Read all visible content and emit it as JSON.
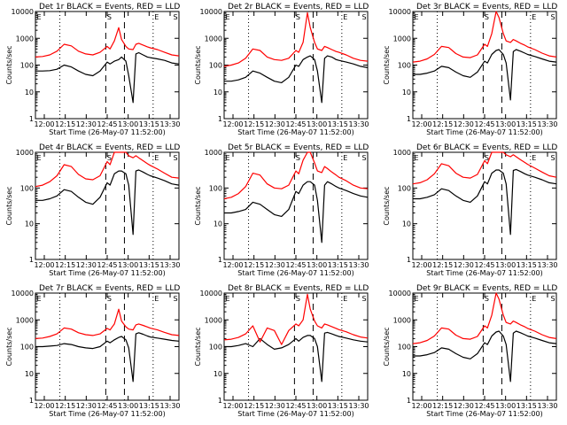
{
  "colors": {
    "events": "#000000",
    "lld": "#ff0000",
    "background": "#ffffff"
  },
  "chart_data": [
    {
      "type": "line",
      "title": "Det 1r BLACK = Events, RED = LLD",
      "xlabel": "Start Time (26-May-07 11:52:00)",
      "ylabel": "Counts/sec",
      "x_ticks": [
        "12:00",
        "12:15",
        "12:30",
        "12:45",
        "13:00",
        "13:15",
        "13:30"
      ],
      "y_ticks": [
        "1",
        "10",
        "100",
        "1000",
        "10000"
      ],
      "yscale": "log",
      "ylim": [
        1,
        10000
      ],
      "markers": {
        "S": "S",
        "E": "E"
      },
      "x": [
        0,
        5,
        10,
        15,
        20,
        25,
        30,
        35,
        40,
        45,
        50,
        52,
        55,
        58,
        60,
        63,
        65,
        68,
        70,
        72,
        75,
        78,
        80,
        85,
        90,
        95,
        100
      ],
      "series": [
        {
          "name": "Events",
          "values": [
            60,
            60,
            62,
            70,
            100,
            85,
            60,
            45,
            40,
            60,
            130,
            110,
            140,
            160,
            200,
            140,
            40,
            4,
            260,
            290,
            240,
            200,
            190,
            170,
            150,
            120,
            110
          ]
        },
        {
          "name": "LLD",
          "values": [
            200,
            210,
            240,
            330,
            600,
            520,
            330,
            260,
            240,
            300,
            500,
            400,
            800,
            2500,
            900,
            500,
            400,
            380,
            600,
            650,
            560,
            480,
            440,
            380,
            300,
            240,
            220
          ]
        }
      ]
    },
    {
      "type": "line",
      "title": "Det 2r BLACK = Events, RED = LLD",
      "xlabel": "Start Time (26-May-07 11:52:00)",
      "ylabel": "Counts/sec",
      "x_ticks": [
        "12:00",
        "12:15",
        "12:30",
        "12:45",
        "13:00",
        "13:15",
        "13:30"
      ],
      "y_ticks": [
        "1",
        "10",
        "100",
        "1000",
        "10000"
      ],
      "yscale": "log",
      "ylim": [
        1,
        10000
      ],
      "markers": {
        "S": "S",
        "E": "E"
      },
      "x": [
        0,
        5,
        10,
        15,
        20,
        25,
        30,
        35,
        40,
        45,
        50,
        52,
        55,
        58,
        60,
        63,
        65,
        68,
        70,
        72,
        75,
        78,
        80,
        85,
        90,
        95,
        100
      ],
      "series": [
        {
          "name": "Events",
          "values": [
            25,
            25,
            28,
            35,
            60,
            50,
            35,
            25,
            22,
            35,
            100,
            90,
            160,
            200,
            220,
            160,
            60,
            4,
            180,
            220,
            200,
            160,
            150,
            130,
            110,
            90,
            80
          ]
        },
        {
          "name": "LLD",
          "values": [
            90,
            100,
            120,
            180,
            400,
            350,
            200,
            160,
            150,
            180,
            350,
            300,
            700,
            9000,
            2500,
            700,
            400,
            350,
            500,
            450,
            380,
            320,
            300,
            240,
            180,
            150,
            140
          ]
        }
      ]
    },
    {
      "type": "line",
      "title": "Det 3r BLACK = Events, RED = LLD",
      "xlabel": "Start Time (26-May-07 11:52:00)",
      "ylabel": "Counts/sec",
      "x_ticks": [
        "12:00",
        "12:15",
        "12:30",
        "12:45",
        "13:00",
        "13:15",
        "13:30"
      ],
      "y_ticks": [
        "1",
        "10",
        "100",
        "1000",
        "10000"
      ],
      "yscale": "log",
      "ylim": [
        1,
        10000
      ],
      "markers": {
        "S": "S",
        "E": "E"
      },
      "x": [
        0,
        5,
        10,
        15,
        20,
        25,
        30,
        35,
        40,
        45,
        50,
        52,
        55,
        58,
        60,
        63,
        65,
        68,
        70,
        72,
        75,
        78,
        80,
        85,
        90,
        95,
        100
      ],
      "series": [
        {
          "name": "Events",
          "values": [
            45,
            45,
            50,
            60,
            90,
            80,
            55,
            40,
            35,
            55,
            140,
            120,
            250,
            350,
            380,
            250,
            120,
            5,
            320,
            380,
            330,
            280,
            250,
            210,
            170,
            140,
            130
          ]
        },
        {
          "name": "LLD",
          "values": [
            130,
            140,
            170,
            250,
            500,
            450,
            270,
            200,
            190,
            240,
            600,
            500,
            1500,
            10000,
            6000,
            1500,
            800,
            700,
            900,
            800,
            650,
            550,
            480,
            380,
            280,
            220,
            200
          ]
        }
      ]
    },
    {
      "type": "line",
      "title": "Det 4r BLACK = Events, RED = LLD",
      "xlabel": "Start Time (26-May-07 11:52:00)",
      "ylabel": "Counts/sec",
      "x_ticks": [
        "12:00",
        "12:15",
        "12:30",
        "12:45",
        "13:00",
        "13:15",
        "13:30"
      ],
      "y_ticks": [
        "1",
        "10",
        "100",
        "1000"
      ],
      "yscale": "log",
      "ylim": [
        1,
        1000
      ],
      "markers": {
        "S": "S",
        "E": "E"
      },
      "x": [
        0,
        5,
        10,
        15,
        20,
        25,
        30,
        35,
        40,
        45,
        50,
        52,
        55,
        58,
        60,
        63,
        65,
        68,
        70,
        72,
        75,
        78,
        80,
        85,
        90,
        95,
        100
      ],
      "series": [
        {
          "name": "Events",
          "values": [
            45,
            45,
            50,
            60,
            90,
            80,
            55,
            40,
            35,
            55,
            140,
            120,
            250,
            300,
            300,
            250,
            120,
            5,
            300,
            320,
            280,
            240,
            220,
            190,
            160,
            130,
            120
          ]
        },
        {
          "name": "LLD",
          "values": [
            110,
            120,
            150,
            220,
            450,
            400,
            240,
            180,
            170,
            220,
            550,
            450,
            1000,
            1000,
            1000,
            1000,
            800,
            700,
            800,
            700,
            580,
            480,
            430,
            340,
            260,
            200,
            190
          ]
        }
      ]
    },
    {
      "type": "line",
      "title": "Det 5r BLACK = Events, RED = LLD",
      "xlabel": "Start Time (26-May-07 11:52:00)",
      "ylabel": "Counts/sec",
      "x_ticks": [
        "12:00",
        "12:15",
        "12:30",
        "12:45",
        "13:00",
        "13:15",
        "13:30"
      ],
      "y_ticks": [
        "1",
        "10",
        "100",
        "1000"
      ],
      "yscale": "log",
      "ylim": [
        1,
        1000
      ],
      "markers": {
        "S": "S",
        "E": "E"
      },
      "x": [
        0,
        5,
        10,
        15,
        20,
        25,
        30,
        35,
        40,
        45,
        50,
        52,
        55,
        58,
        60,
        63,
        65,
        68,
        70,
        72,
        75,
        78,
        80,
        85,
        90,
        95,
        100
      ],
      "series": [
        {
          "name": "Events",
          "values": [
            20,
            20,
            22,
            25,
            40,
            35,
            25,
            18,
            16,
            25,
            80,
            70,
            120,
            150,
            150,
            120,
            45,
            3,
            120,
            150,
            130,
            110,
            100,
            85,
            70,
            60,
            55
          ]
        },
        {
          "name": "LLD",
          "values": [
            50,
            55,
            70,
            110,
            260,
            230,
            130,
            100,
            95,
            120,
            300,
            250,
            600,
            1000,
            1000,
            500,
            300,
            270,
            400,
            350,
            280,
            230,
            200,
            160,
            120,
            100,
            95
          ]
        }
      ]
    },
    {
      "type": "line",
      "title": "Det 6r BLACK = Events, RED = LLD",
      "xlabel": "Start Time (26-May-07 11:52:00)",
      "ylabel": "Counts/sec",
      "x_ticks": [
        "12:00",
        "12:15",
        "12:30",
        "12:45",
        "13:00",
        "13:15",
        "13:30"
      ],
      "y_ticks": [
        "1",
        "10",
        "100",
        "1000"
      ],
      "yscale": "log",
      "ylim": [
        1,
        1000
      ],
      "markers": {
        "S": "S",
        "E": "E"
      },
      "x": [
        0,
        5,
        10,
        15,
        20,
        25,
        30,
        35,
        40,
        45,
        50,
        52,
        55,
        58,
        60,
        63,
        65,
        68,
        70,
        72,
        75,
        78,
        80,
        85,
        90,
        95,
        100
      ],
      "series": [
        {
          "name": "Events",
          "values": [
            50,
            50,
            55,
            65,
            95,
            85,
            60,
            45,
            40,
            60,
            150,
            130,
            260,
            320,
            320,
            260,
            130,
            5,
            310,
            330,
            290,
            250,
            230,
            200,
            170,
            140,
            130
          ]
        },
        {
          "name": "LLD",
          "values": [
            130,
            140,
            170,
            250,
            480,
            420,
            260,
            200,
            190,
            240,
            580,
            480,
            1000,
            1000,
            1000,
            1000,
            850,
            750,
            850,
            750,
            620,
            520,
            460,
            360,
            280,
            220,
            200
          ]
        }
      ]
    },
    {
      "type": "line",
      "title": "Det 7r BLACK = Events, RED = LLD",
      "xlabel": "Start Time (26-May-07 11:52:00)",
      "ylabel": "Counts/sec",
      "x_ticks": [
        "12:00",
        "12:15",
        "12:30",
        "12:45",
        "13:00",
        "13:15",
        "13:30"
      ],
      "y_ticks": [
        "1",
        "10",
        "100",
        "1000",
        "10000"
      ],
      "yscale": "log",
      "ylim": [
        1,
        10000
      ],
      "markers": {
        "S": "S",
        "E": "E"
      },
      "x": [
        0,
        5,
        10,
        15,
        20,
        25,
        30,
        35,
        40,
        45,
        50,
        52,
        55,
        58,
        60,
        63,
        65,
        68,
        70,
        72,
        75,
        78,
        80,
        85,
        90,
        95,
        100
      ],
      "series": [
        {
          "name": "Events",
          "values": [
            100,
            100,
            105,
            110,
            130,
            120,
            100,
            90,
            85,
            100,
            160,
            140,
            180,
            220,
            240,
            180,
            90,
            5,
            300,
            330,
            290,
            250,
            230,
            210,
            190,
            170,
            160
          ]
        },
        {
          "name": "LLD",
          "values": [
            200,
            210,
            240,
            300,
            500,
            450,
            330,
            280,
            260,
            300,
            480,
            420,
            700,
            2500,
            900,
            550,
            450,
            420,
            650,
            700,
            620,
            540,
            490,
            420,
            340,
            280,
            260
          ]
        }
      ]
    },
    {
      "type": "line",
      "title": "Det 8r BLACK = Events, RED = LLD",
      "xlabel": "Start Time (26-May-07 11:52:00)",
      "ylabel": "Counts/sec",
      "x_ticks": [
        "12:00",
        "12:15",
        "12:30",
        "12:45",
        "13:00",
        "13:15",
        "13:30"
      ],
      "y_ticks": [
        "1",
        "10",
        "100",
        "1000",
        "10000"
      ],
      "yscale": "log",
      "ylim": [
        1,
        10000
      ],
      "markers": {
        "S": "S",
        "E": "E"
      },
      "x": [
        0,
        5,
        10,
        15,
        20,
        25,
        30,
        35,
        40,
        45,
        50,
        52,
        55,
        58,
        60,
        63,
        65,
        68,
        70,
        72,
        75,
        78,
        80,
        85,
        90,
        95,
        100
      ],
      "series": [
        {
          "name": "Events",
          "values": [
            100,
            100,
            110,
            130,
            100,
            200,
            120,
            80,
            90,
            120,
            200,
            160,
            220,
            260,
            260,
            200,
            100,
            5,
            320,
            340,
            300,
            260,
            240,
            210,
            180,
            160,
            150
          ]
        },
        {
          "name": "LLD",
          "values": [
            180,
            190,
            220,
            300,
            600,
            150,
            500,
            400,
            120,
            400,
            700,
            600,
            1000,
            9000,
            2500,
            900,
            600,
            500,
            700,
            650,
            560,
            480,
            430,
            360,
            280,
            230,
            210
          ]
        }
      ]
    },
    {
      "type": "line",
      "title": "Det 9r BLACK = Events, RED = LLD",
      "xlabel": "Start Time (26-May-07 11:52:00)",
      "ylabel": "Counts/sec",
      "x_ticks": [
        "12:00",
        "12:15",
        "12:30",
        "12:45",
        "13:00",
        "13:15",
        "13:30"
      ],
      "y_ticks": [
        "1",
        "10",
        "100",
        "1000",
        "10000"
      ],
      "yscale": "log",
      "ylim": [
        1,
        10000
      ],
      "markers": {
        "S": "S",
        "E": "E"
      },
      "x": [
        0,
        5,
        10,
        15,
        20,
        25,
        30,
        35,
        40,
        45,
        50,
        52,
        55,
        58,
        60,
        63,
        65,
        68,
        70,
        72,
        75,
        78,
        80,
        85,
        90,
        95,
        100
      ],
      "series": [
        {
          "name": "Events",
          "values": [
            45,
            45,
            50,
            60,
            90,
            80,
            55,
            40,
            35,
            55,
            140,
            120,
            250,
            350,
            380,
            250,
            120,
            5,
            320,
            380,
            330,
            280,
            250,
            210,
            170,
            140,
            130
          ]
        },
        {
          "name": "LLD",
          "values": [
            130,
            140,
            170,
            250,
            500,
            450,
            270,
            200,
            190,
            240,
            600,
            500,
            1500,
            10000,
            6000,
            1500,
            800,
            700,
            900,
            800,
            650,
            550,
            480,
            380,
            280,
            220,
            200
          ]
        }
      ]
    }
  ]
}
